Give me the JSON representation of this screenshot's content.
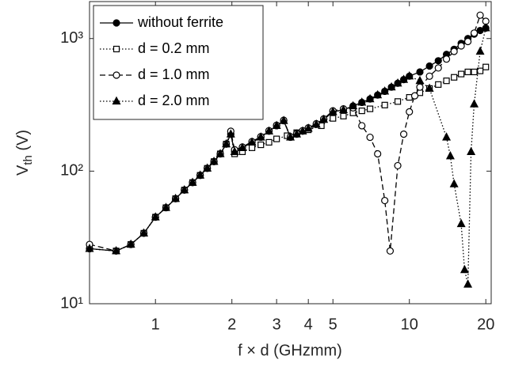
{
  "chart_data": {
    "type": "line",
    "xlabel": "f × d (GHzmm)",
    "ylabel_parts": [
      "V",
      "th",
      " (V)"
    ],
    "xscale": "log",
    "yscale": "log",
    "xlim": [
      0.55,
      21
    ],
    "ylim": [
      10,
      1900
    ],
    "xticks": [
      1,
      2,
      3,
      4,
      5,
      10,
      20
    ],
    "yticks": [
      {
        "value": 10,
        "label": "10¹"
      },
      {
        "value": 100,
        "label": "10²"
      },
      {
        "value": 1000,
        "label": "10³"
      }
    ],
    "legend": "upper left",
    "series": [
      {
        "name": "without ferrite",
        "color": "#000000",
        "linestyle": "solid",
        "marker": "circle-filled",
        "x": [
          0.55,
          0.7,
          0.8,
          0.9,
          1.0,
          1.1,
          1.2,
          1.3,
          1.4,
          1.5,
          1.6,
          1.7,
          1.8,
          1.9,
          1.98,
          2.05,
          2.2,
          2.4,
          2.6,
          2.8,
          3.0,
          3.2,
          3.4,
          3.6,
          3.8,
          4.0,
          4.3,
          4.6,
          5.0,
          5.5,
          6,
          6.5,
          7,
          7.5,
          8,
          8.5,
          9,
          9.5,
          10,
          11,
          12,
          13,
          14,
          15,
          16,
          17,
          18,
          19,
          20
        ],
        "values": [
          26,
          25,
          28,
          34,
          45,
          53,
          62,
          72,
          82,
          93,
          105,
          118,
          135,
          160,
          190,
          140,
          150,
          165,
          180,
          200,
          220,
          240,
          180,
          190,
          200,
          210,
          225,
          245,
          280,
          290,
          310,
          330,
          350,
          375,
          400,
          430,
          460,
          490,
          520,
          560,
          620,
          680,
          760,
          830,
          920,
          1000,
          1080,
          1150,
          1200
        ]
      },
      {
        "name": "d = 0.2 mm",
        "color": "#000000",
        "linestyle": "dotted",
        "marker": "square-open",
        "x": [
          0.55,
          0.7,
          0.8,
          0.9,
          1.0,
          1.1,
          1.2,
          1.3,
          1.4,
          1.5,
          1.6,
          1.7,
          1.8,
          1.9,
          1.98,
          2.05,
          2.2,
          2.4,
          2.6,
          2.8,
          3.0,
          3.3,
          3.6,
          4.0,
          4.5,
          5.0,
          5.5,
          6,
          6.5,
          7,
          8,
          9,
          10,
          11,
          12,
          13,
          14,
          15,
          16,
          17,
          18,
          19,
          20
        ],
        "values": [
          26,
          25,
          28,
          34,
          45,
          53,
          62,
          72,
          82,
          93,
          105,
          118,
          135,
          160,
          190,
          135,
          140,
          150,
          158,
          165,
          175,
          185,
          195,
          205,
          220,
          250,
          260,
          275,
          285,
          295,
          315,
          335,
          360,
          390,
          420,
          450,
          480,
          510,
          540,
          560,
          560,
          570,
          610
        ]
      },
      {
        "name": "d = 1.0 mm",
        "color": "#000000",
        "linestyle": "dashed",
        "marker": "circle-open",
        "x": [
          0.55,
          0.7,
          0.8,
          0.9,
          1.0,
          1.1,
          1.2,
          1.3,
          1.4,
          1.5,
          1.6,
          1.7,
          1.8,
          1.9,
          1.98,
          2.05,
          2.2,
          2.4,
          2.6,
          2.8,
          3.0,
          3.2,
          3.4,
          3.6,
          3.8,
          4.0,
          4.3,
          4.6,
          5.0,
          5.5,
          6.0,
          6.5,
          7,
          7.5,
          8,
          8.4,
          9,
          9.5,
          10,
          10.5,
          11,
          12,
          13,
          14,
          15,
          16,
          17,
          18,
          19,
          20
        ],
        "values": [
          28,
          25,
          28,
          34,
          45,
          53,
          62,
          72,
          82,
          93,
          105,
          118,
          135,
          160,
          200,
          145,
          152,
          167,
          182,
          202,
          222,
          242,
          182,
          192,
          202,
          212,
          228,
          248,
          285,
          295,
          300,
          220,
          180,
          135,
          60,
          25,
          110,
          190,
          280,
          370,
          430,
          520,
          600,
          700,
          800,
          880,
          950,
          1100,
          1500,
          1350
        ]
      },
      {
        "name": "d = 2.0 mm",
        "color": "#000000",
        "linestyle": "dotted",
        "marker": "triangle-filled",
        "x": [
          0.55,
          0.7,
          0.8,
          0.9,
          1.0,
          1.1,
          1.2,
          1.3,
          1.4,
          1.5,
          1.6,
          1.7,
          1.8,
          1.9,
          1.98,
          2.05,
          2.2,
          2.4,
          2.6,
          2.8,
          3.0,
          3.2,
          3.4,
          3.6,
          3.8,
          4.0,
          4.3,
          4.6,
          5.0,
          5.5,
          6,
          6.5,
          7,
          7.5,
          8,
          8.5,
          9,
          9.5,
          10,
          11,
          12,
          14,
          14.5,
          15,
          16,
          16.5,
          17,
          17.5,
          18,
          19,
          20
        ],
        "values": [
          26,
          25,
          28,
          34,
          45,
          53,
          62,
          72,
          82,
          93,
          105,
          118,
          135,
          160,
          190,
          140,
          150,
          165,
          180,
          200,
          220,
          240,
          180,
          190,
          200,
          210,
          225,
          245,
          280,
          290,
          310,
          330,
          350,
          375,
          400,
          430,
          460,
          490,
          520,
          480,
          420,
          180,
          130,
          80,
          40,
          18,
          14,
          140,
          320,
          800,
          1200
        ]
      }
    ]
  }
}
